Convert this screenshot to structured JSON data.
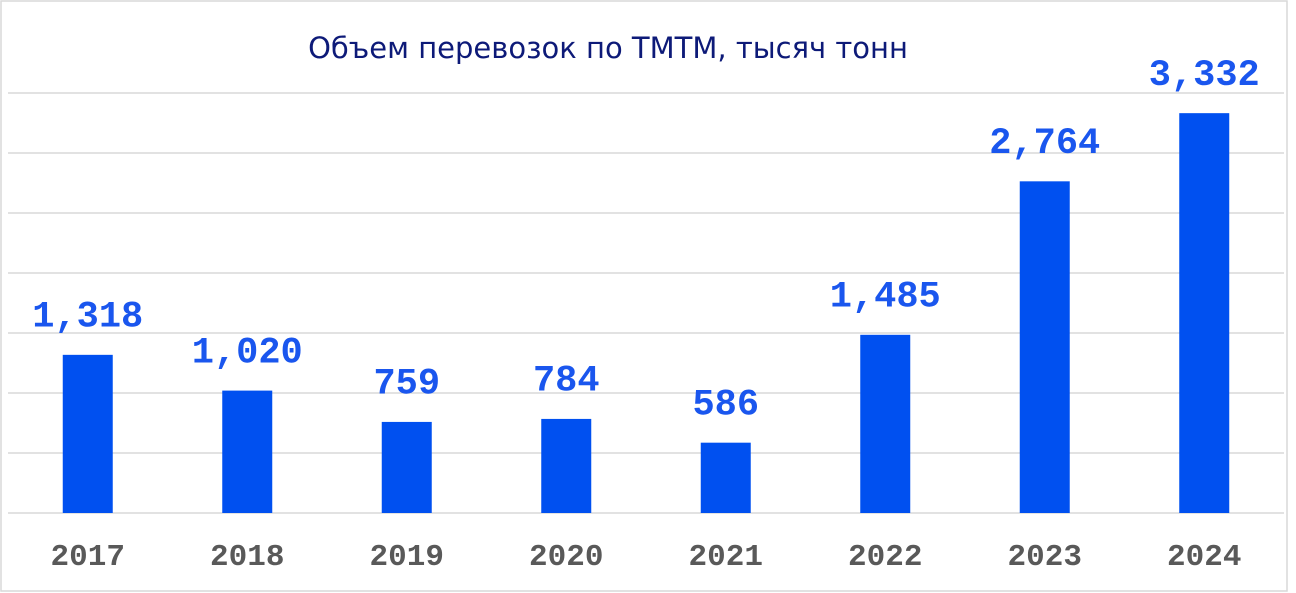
{
  "chart_data": {
    "type": "bar",
    "title": "Объем перевозок по ТМТМ, тысяч тонн",
    "categories": [
      "2017",
      "2018",
      "2019",
      "2020",
      "2021",
      "2022",
      "2023",
      "2024"
    ],
    "values": [
      1318,
      1020,
      759,
      784,
      586,
      1485,
      2764,
      3332
    ],
    "value_labels": [
      "1,318",
      "1,020",
      "759",
      "784",
      "586",
      "1,485",
      "2,764",
      "3,332"
    ],
    "color": "#0050f0",
    "ylim": [
      0,
      3500
    ],
    "yticks": [
      0,
      500,
      1000,
      1500,
      2000,
      2500,
      3000,
      3500
    ],
    "grid": true
  }
}
